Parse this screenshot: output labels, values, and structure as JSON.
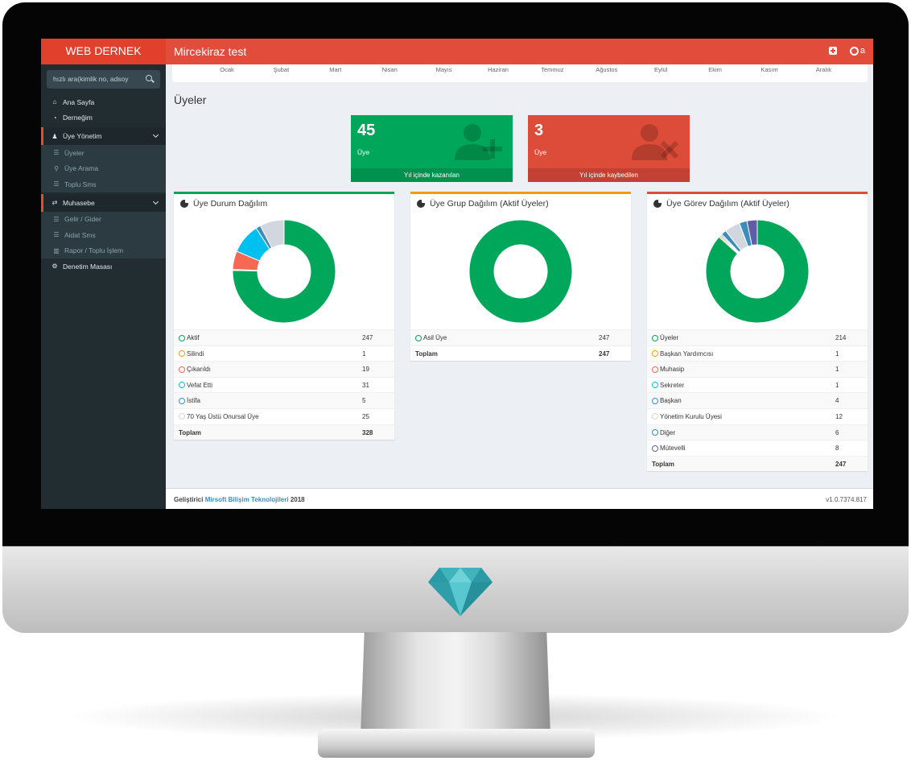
{
  "topbar": {
    "brand": "WEB DERNEK",
    "title": "Mircekiraz test",
    "user_suffix": "a"
  },
  "sidebar": {
    "search_placeholder": "hızlı ara(kimlik no, adsoy",
    "items": [
      {
        "label": "Ana Sayfa",
        "icon": "home-icon",
        "kind": "item"
      },
      {
        "label": "Derneğim",
        "icon": "dashboard-icon",
        "kind": "item"
      },
      {
        "label": "Üye Yönetim",
        "icon": "users-icon",
        "kind": "header"
      },
      {
        "label": "Üyeler",
        "icon": "list-icon",
        "kind": "sub"
      },
      {
        "label": "Üye Arama",
        "icon": "search-icon",
        "kind": "sub"
      },
      {
        "label": "Toplu Sms",
        "icon": "list-icon",
        "kind": "sub"
      },
      {
        "label": "Muhasebe",
        "icon": "exchange-icon",
        "kind": "header"
      },
      {
        "label": "Gelir / Gider",
        "icon": "list-icon",
        "kind": "sub"
      },
      {
        "label": "Aidat Sms",
        "icon": "list-icon",
        "kind": "sub"
      },
      {
        "label": "Rapor / Toplu İşlem",
        "icon": "bar-chart-icon",
        "kind": "sub"
      },
      {
        "label": "Denetim Masası",
        "icon": "gears-icon",
        "kind": "item"
      }
    ]
  },
  "months": [
    "Ocak",
    "Şubat",
    "Mart",
    "Nisan",
    "Mayıs",
    "Haziran",
    "Temmuz",
    "Ağustos",
    "Eylül",
    "Ekim",
    "Kasım",
    "Aralık"
  ],
  "page_title": "Üyeler",
  "stats": {
    "gained": {
      "number": "45",
      "label": "Üye",
      "footer": "Yıl içinde kazanılan",
      "color": "#00a65a"
    },
    "lost": {
      "number": "3",
      "label": "Üye",
      "footer": "Yıl içinde kaybedilen",
      "color": "#dd4b39"
    }
  },
  "boxes": [
    {
      "title": "Üye Durum Dağılım",
      "border_color": "#00a65a",
      "rows": [
        {
          "label": "Aktif",
          "value": 247,
          "color": "#00a65a"
        },
        {
          "label": "Silindi",
          "value": 1,
          "color": "#f39c12"
        },
        {
          "label": "Çıkarıldı",
          "value": 19,
          "color": "#f56954"
        },
        {
          "label": "Vefat Etti",
          "value": 31,
          "color": "#00c0ef"
        },
        {
          "label": "İstifa",
          "value": 5,
          "color": "#3c8dbc"
        },
        {
          "label": "70 Yaş Üstü Onursal Üye",
          "value": 25,
          "color": "#d2d6de"
        }
      ],
      "total_label": "Toplam",
      "total": 328
    },
    {
      "title": "Üye Grup Dağılım (Aktif Üyeler)",
      "border_color": "#f39c12",
      "rows": [
        {
          "label": "Asil Üye",
          "value": 247,
          "color": "#00a65a"
        }
      ],
      "total_label": "Toplam",
      "total": 247
    },
    {
      "title": "Üye Görev Dağılım (Aktif Üyeler)",
      "border_color": "#dd4b39",
      "rows": [
        {
          "label": "Üyeler",
          "value": 214,
          "color": "#00a65a"
        },
        {
          "label": "Başkan Yardımcısı",
          "value": 1,
          "color": "#f39c12"
        },
        {
          "label": "Muhasip",
          "value": 1,
          "color": "#f56954"
        },
        {
          "label": "Sekreter",
          "value": 1,
          "color": "#00c0ef"
        },
        {
          "label": "Başkan",
          "value": 4,
          "color": "#3c8dbc"
        },
        {
          "label": "Yönetim Kurulu Üyesi",
          "value": 12,
          "color": "#d2d6de"
        },
        {
          "label": "Diğer",
          "value": 6,
          "color": "#3c8dbc"
        },
        {
          "label": "Mütevelli",
          "value": 8,
          "color": "#605ca8"
        }
      ],
      "total_label": "Toplam",
      "total": 247
    }
  ],
  "footer": {
    "prefix": "Geliştirici",
    "company": "Mirsoft Bilişim Teknolojileri",
    "year": "2018",
    "version": "v1.0.7374.817"
  }
}
